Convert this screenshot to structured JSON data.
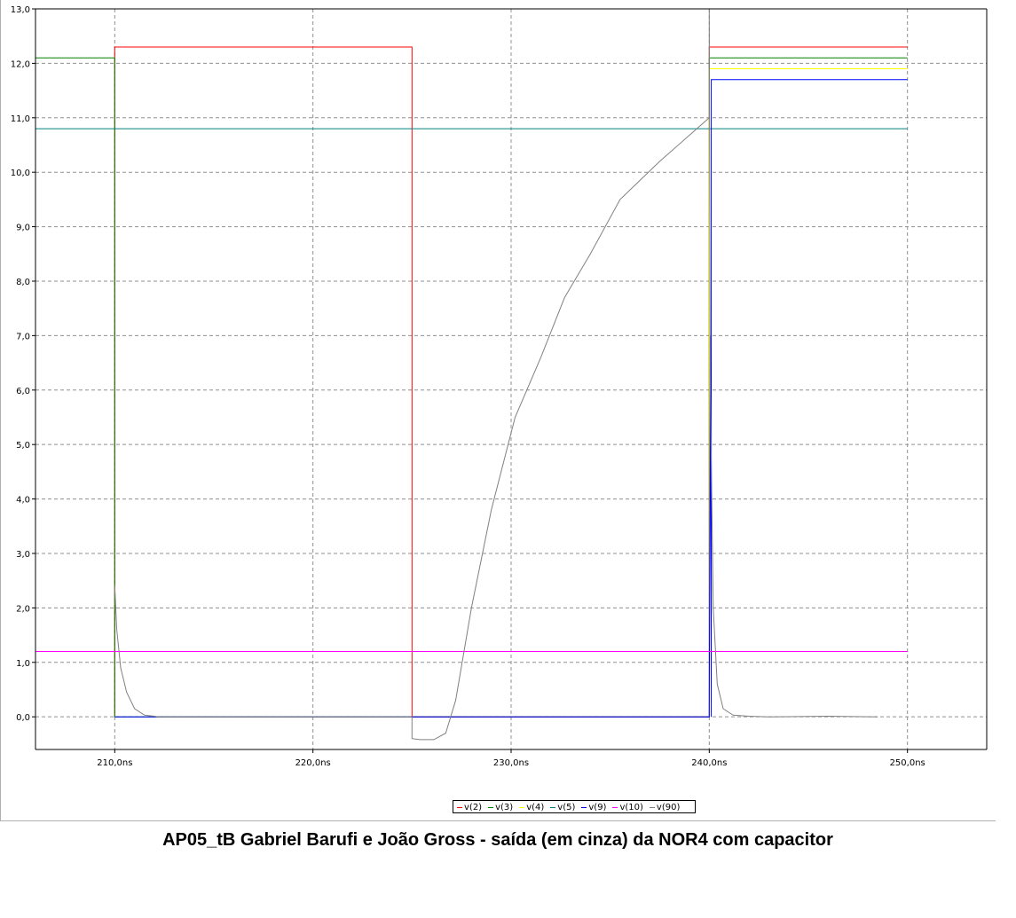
{
  "caption": "AP05_tB Gabriel Barufi e João Gross - saída (em cinza) da NOR4 com capacitor",
  "chart_data": {
    "type": "line",
    "xlim": [
      206,
      254.0
    ],
    "ylim": [
      -0.6,
      13.0
    ],
    "x_ticks": [
      210,
      220,
      230,
      240,
      250
    ],
    "x_tick_labels": [
      "210,0ns",
      "220,0ns",
      "230,0ns",
      "240,0ns",
      "250,0ns"
    ],
    "y_ticks": [
      0,
      1,
      2,
      3,
      4,
      5,
      6,
      7,
      8,
      9,
      10,
      11,
      12,
      13
    ],
    "y_tick_labels": [
      "0,0",
      "1,0",
      "2,0",
      "3,0",
      "4,0",
      "5,0",
      "6,0",
      "7,0",
      "8,0",
      "9,0",
      "10,0",
      "11,0",
      "12,0",
      "13,0"
    ],
    "grid": true,
    "legend_position": "bottom-center",
    "series": [
      {
        "name": "v(2)",
        "color": "#ff0000",
        "x": [
          210,
          210,
          225,
          225,
          240,
          240,
          250
        ],
        "y": [
          0,
          12.3,
          12.3,
          0,
          0,
          12.3,
          12.3
        ]
      },
      {
        "name": "v(3)",
        "color": "#008000",
        "x": [
          206,
          210,
          210,
          240,
          240,
          250
        ],
        "y": [
          12.1,
          12.1,
          0,
          0,
          12.1,
          12.1
        ]
      },
      {
        "name": "v(4)",
        "color": "#ffff00",
        "x": [
          240,
          240,
          250
        ],
        "y": [
          0,
          11.9,
          11.9
        ]
      },
      {
        "name": "v(5)",
        "color": "#008080",
        "x": [
          206,
          250
        ],
        "y": [
          10.8,
          10.8
        ]
      },
      {
        "name": "v(9)",
        "color": "#0000ff",
        "x": [
          210,
          212.2,
          212.2,
          225,
          225,
          240,
          240,
          240.05,
          240.1,
          240.1,
          250
        ],
        "y": [
          0,
          0,
          0,
          0,
          0,
          0,
          0,
          7.0,
          0,
          11.7,
          11.7
        ]
      },
      {
        "name": "v(10)",
        "color": "#ff00ff",
        "x": [
          206,
          250
        ],
        "y": [
          1.2,
          1.2
        ]
      },
      {
        "name": "v(90)",
        "color": "#808080",
        "x": [
          210,
          210.1,
          210.3,
          210.6,
          211.0,
          211.5,
          212.0,
          212.2,
          225,
          225,
          225.4,
          226.1,
          226.7,
          227.2,
          228.0,
          229.0,
          230.2,
          231.5,
          232.7,
          234.0,
          235.5,
          237.5,
          240.0,
          240.0,
          240.05,
          240.2,
          240.4,
          240.7,
          241.2,
          242,
          243,
          246,
          248.5
        ],
        "y": [
          2.4,
          1.6,
          0.9,
          0.45,
          0.15,
          0.03,
          0.01,
          0.0,
          0.0,
          -0.4,
          -0.42,
          -0.42,
          -0.3,
          0.3,
          2.0,
          3.8,
          5.5,
          6.6,
          7.7,
          8.5,
          9.5,
          10.2,
          11.0,
          13.0,
          6.0,
          2.0,
          0.6,
          0.15,
          0.03,
          0.01,
          0.0,
          0.01,
          0.0
        ]
      }
    ]
  }
}
